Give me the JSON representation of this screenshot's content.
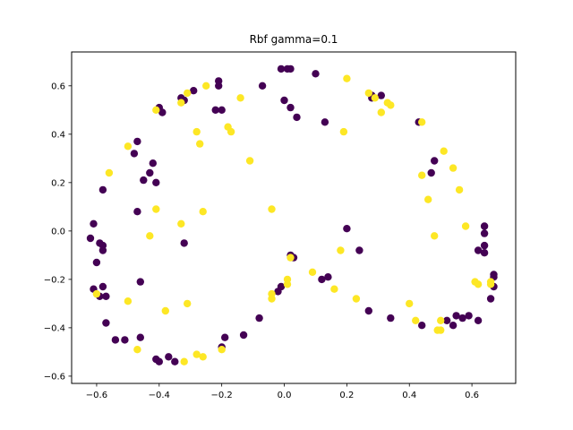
{
  "chart_data": {
    "type": "scatter",
    "title": "Rbf gamma=0.1",
    "xlabel": "",
    "ylabel": "",
    "xlim": [
      -0.68,
      0.74
    ],
    "ylim": [
      -0.63,
      0.74
    ],
    "xticks": [
      -0.6,
      -0.4,
      -0.2,
      0.0,
      0.2,
      0.4,
      0.6
    ],
    "xtick_labels": [
      "−0.6",
      "−0.4",
      "−0.2",
      "0.0",
      "0.2",
      "0.4",
      "0.6"
    ],
    "yticks": [
      -0.6,
      -0.4,
      -0.2,
      0.0,
      0.2,
      0.4,
      0.6
    ],
    "ytick_labels": [
      "−0.6",
      "−0.4",
      "−0.2",
      "0.0",
      "0.2",
      "0.4",
      "0.6"
    ],
    "grid": false,
    "colors": {
      "class_0": "#440154",
      "class_1": "#fde725"
    },
    "series": [
      {
        "class": 0,
        "points": [
          [
            -0.01,
            0.67
          ],
          [
            0.01,
            0.67
          ],
          [
            0.02,
            0.67
          ],
          [
            0.1,
            0.65
          ],
          [
            -0.07,
            0.6
          ],
          [
            -0.21,
            0.62
          ],
          [
            -0.21,
            0.6
          ],
          [
            -0.29,
            0.58
          ],
          [
            -0.33,
            0.55
          ],
          [
            -0.32,
            0.54
          ],
          [
            -0.4,
            0.51
          ],
          [
            -0.39,
            0.49
          ],
          [
            -0.22,
            0.5
          ],
          [
            -0.2,
            0.5
          ],
          [
            0.0,
            0.54
          ],
          [
            0.02,
            0.51
          ],
          [
            0.04,
            0.47
          ],
          [
            0.13,
            0.45
          ],
          [
            0.28,
            0.56
          ],
          [
            0.28,
            0.55
          ],
          [
            0.31,
            0.56
          ],
          [
            0.43,
            0.45
          ],
          [
            -0.47,
            0.37
          ],
          [
            -0.48,
            0.32
          ],
          [
            -0.42,
            0.28
          ],
          [
            -0.43,
            0.24
          ],
          [
            -0.45,
            0.21
          ],
          [
            -0.41,
            0.2
          ],
          [
            -0.58,
            0.17
          ],
          [
            -0.47,
            0.08
          ],
          [
            -0.61,
            0.03
          ],
          [
            -0.32,
            -0.05
          ],
          [
            -0.62,
            -0.03
          ],
          [
            -0.59,
            -0.05
          ],
          [
            -0.58,
            -0.06
          ],
          [
            -0.58,
            -0.08
          ],
          [
            -0.6,
            -0.13
          ],
          [
            -0.61,
            -0.24
          ],
          [
            -0.58,
            -0.23
          ],
          [
            -0.59,
            -0.27
          ],
          [
            -0.57,
            -0.27
          ],
          [
            -0.46,
            -0.21
          ],
          [
            -0.57,
            -0.38
          ],
          [
            -0.54,
            -0.45
          ],
          [
            -0.51,
            -0.45
          ],
          [
            -0.46,
            -0.44
          ],
          [
            -0.41,
            -0.53
          ],
          [
            -0.4,
            -0.54
          ],
          [
            -0.37,
            -0.52
          ],
          [
            -0.35,
            -0.54
          ],
          [
            -0.2,
            -0.48
          ],
          [
            -0.19,
            -0.44
          ],
          [
            -0.13,
            -0.43
          ],
          [
            -0.08,
            -0.36
          ],
          [
            -0.02,
            -0.25
          ],
          [
            -0.01,
            -0.23
          ],
          [
            0.02,
            -0.1
          ],
          [
            0.03,
            -0.11
          ],
          [
            0.12,
            -0.2
          ],
          [
            0.14,
            -0.19
          ],
          [
            0.2,
            0.01
          ],
          [
            0.24,
            -0.08
          ],
          [
            0.27,
            -0.33
          ],
          [
            0.34,
            -0.36
          ],
          [
            0.44,
            -0.39
          ],
          [
            0.47,
            0.24
          ],
          [
            0.48,
            0.29
          ],
          [
            0.64,
            0.02
          ],
          [
            0.64,
            -0.01
          ],
          [
            0.64,
            -0.06
          ],
          [
            0.64,
            -0.09
          ],
          [
            0.62,
            -0.08
          ],
          [
            0.67,
            -0.18
          ],
          [
            0.67,
            -0.19
          ],
          [
            0.67,
            -0.23
          ],
          [
            0.66,
            -0.28
          ],
          [
            0.55,
            -0.35
          ],
          [
            0.57,
            -0.36
          ],
          [
            0.59,
            -0.35
          ],
          [
            0.54,
            -0.39
          ],
          [
            0.52,
            -0.37
          ],
          [
            0.62,
            -0.37
          ]
        ]
      },
      {
        "class": 1,
        "points": [
          [
            0.2,
            0.63
          ],
          [
            -0.25,
            0.6
          ],
          [
            -0.31,
            0.57
          ],
          [
            -0.33,
            0.53
          ],
          [
            -0.14,
            0.55
          ],
          [
            -0.41,
            0.5
          ],
          [
            -0.28,
            0.41
          ],
          [
            -0.17,
            0.41
          ],
          [
            -0.18,
            0.43
          ],
          [
            -0.27,
            0.36
          ],
          [
            0.27,
            0.57
          ],
          [
            0.29,
            0.55
          ],
          [
            0.33,
            0.53
          ],
          [
            0.34,
            0.52
          ],
          [
            0.31,
            0.49
          ],
          [
            0.19,
            0.41
          ],
          [
            0.44,
            0.45
          ],
          [
            -0.5,
            0.35
          ],
          [
            -0.56,
            0.24
          ],
          [
            -0.11,
            0.29
          ],
          [
            0.51,
            0.33
          ],
          [
            0.54,
            0.26
          ],
          [
            0.44,
            0.23
          ],
          [
            0.56,
            0.17
          ],
          [
            0.46,
            0.13
          ],
          [
            -0.26,
            0.08
          ],
          [
            -0.41,
            0.09
          ],
          [
            -0.33,
            0.03
          ],
          [
            -0.43,
            -0.02
          ],
          [
            -0.04,
            0.09
          ],
          [
            0.48,
            -0.02
          ],
          [
            0.58,
            0.02
          ],
          [
            0.18,
            -0.08
          ],
          [
            0.02,
            -0.11
          ],
          [
            0.09,
            -0.17
          ],
          [
            0.01,
            -0.2
          ],
          [
            0.01,
            -0.22
          ],
          [
            -0.04,
            -0.26
          ],
          [
            -0.04,
            -0.28
          ],
          [
            0.16,
            -0.24
          ],
          [
            0.23,
            -0.28
          ],
          [
            0.61,
            -0.21
          ],
          [
            0.62,
            -0.22
          ],
          [
            0.66,
            -0.21
          ],
          [
            0.66,
            -0.22
          ],
          [
            -0.6,
            -0.26
          ],
          [
            -0.5,
            -0.29
          ],
          [
            -0.38,
            -0.33
          ],
          [
            -0.31,
            -0.3
          ],
          [
            0.4,
            -0.3
          ],
          [
            0.42,
            -0.37
          ],
          [
            0.5,
            -0.37
          ],
          [
            0.49,
            -0.41
          ],
          [
            0.5,
            -0.41
          ],
          [
            -0.47,
            -0.49
          ],
          [
            -0.2,
            -0.49
          ],
          [
            -0.28,
            -0.51
          ],
          [
            -0.26,
            -0.52
          ],
          [
            -0.32,
            -0.54
          ]
        ]
      }
    ]
  }
}
